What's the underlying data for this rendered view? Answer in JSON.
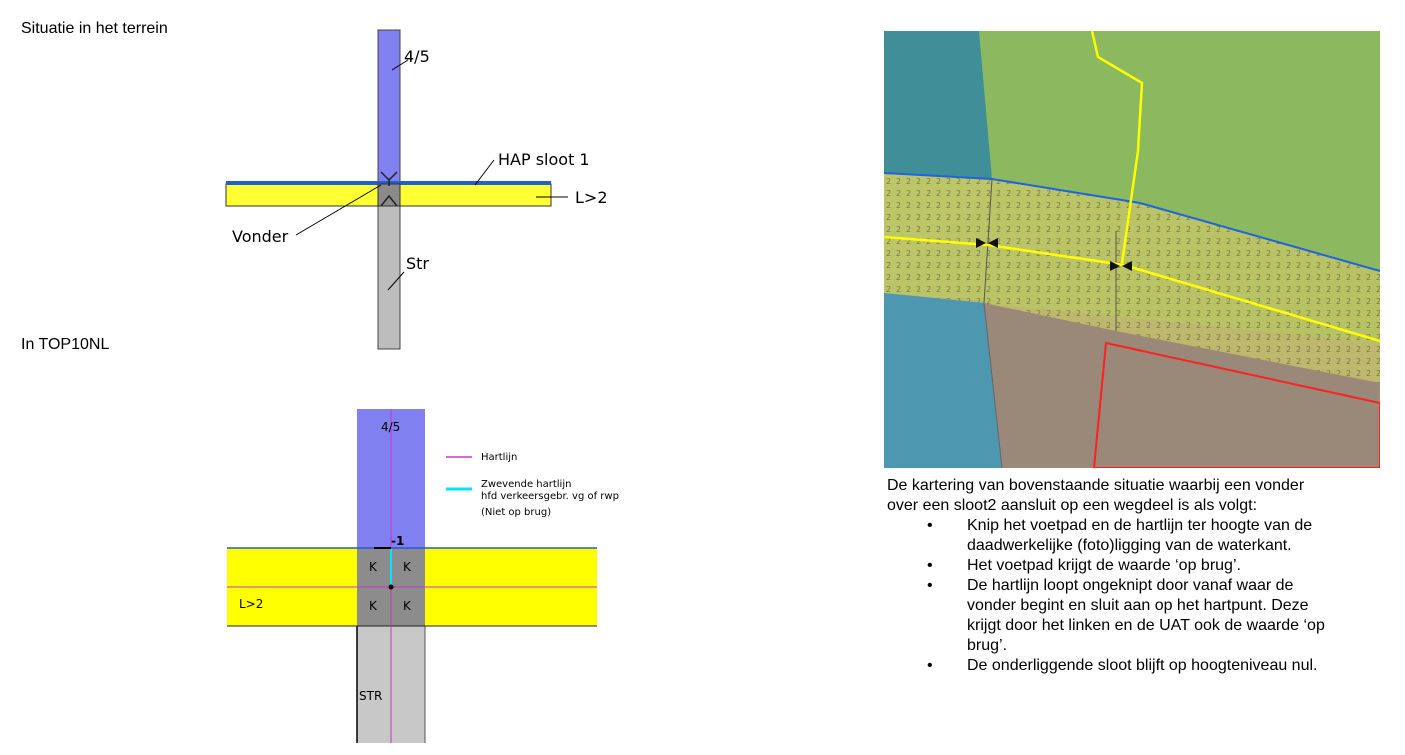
{
  "terrain": {
    "heading": "Situatie in het terrein",
    "label_45": "4/5",
    "label_hap": "HAP sloot 1",
    "label_l2": "L>2",
    "label_vonder": "Vonder",
    "label_str": "Str",
    "colors": {
      "blue": "#8080f0",
      "yellow": "#ffff33",
      "gray": "#bdbdbd",
      "dark": "#8a8a8a",
      "water": "#1f5fd0"
    }
  },
  "top10": {
    "heading": "In TOP10NL",
    "label_45": "4/5",
    "label_minus1": "-1",
    "label_l2": "L>2",
    "label_str": "STR",
    "cells": [
      "K",
      "K",
      "K",
      "K"
    ],
    "legend": {
      "hartlijn": "Hartlijn",
      "zwevende_1": "Zwevende hartlijn",
      "zwevende_2": "hfd verkeersgebr. vg of rwp",
      "zwevende_3": "(Niet op brug)"
    },
    "colors": {
      "blue": "#8080f0",
      "yellow": "#ffff00",
      "gray": "#c8c8c8",
      "dark": "#8c8c8c",
      "magenta": "#cc33cc",
      "cyan": "#00e5ff"
    }
  },
  "aerial": {
    "hatch_char": "2",
    "colors": {
      "water": "#3d8f9e",
      "grass": "#8db85a",
      "road": "#ffff00",
      "building": "#ff2020",
      "ditch": "#1e63e0"
    }
  },
  "description": {
    "intro_1": "De kartering van bovenstaande situatie waarbij een vonder",
    "intro_2": "over een sloot2 aansluit op een wegdeel is als volgt:",
    "bullets": [
      [
        "Knip het voetpad en de hartlijn ter hoogte van de",
        "daadwerkelijke (foto)ligging van de waterkant."
      ],
      [
        "Het voetpad krijgt de waarde ‘op brug’."
      ],
      [
        "De hartlijn loopt ongeknipt door vanaf waar de",
        "vonder begint en sluit aan op het hartpunt. Deze",
        "krijgt door het linken en de UAT ook de waarde ‘op",
        "brug’."
      ],
      [
        "De onderliggende sloot blijft op hoogteniveau nul."
      ]
    ]
  }
}
